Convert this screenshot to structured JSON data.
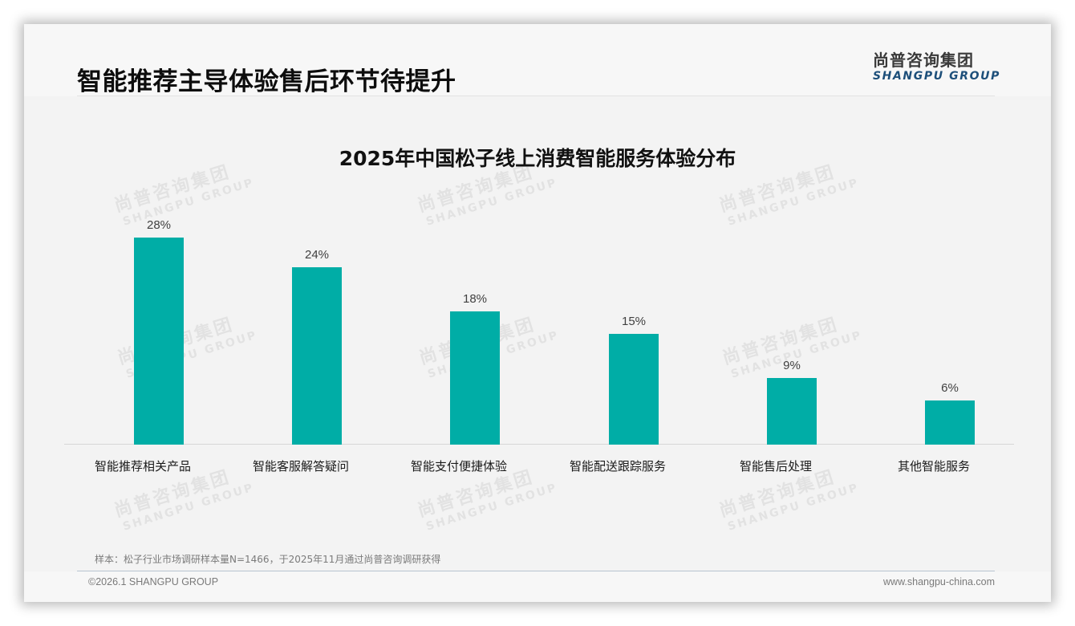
{
  "header": {
    "title": "智能推荐主导体验售后环节待提升",
    "logo_cn": "尚普咨询集团",
    "logo_en": "SHANGPU GROUP"
  },
  "watermark": {
    "cn": "尚普咨询集团",
    "en": "SHANGPU GROUP"
  },
  "chart_data": {
    "type": "bar",
    "title": "2025年中国松子线上消费智能服务体验分布",
    "categories": [
      "智能推荐相关产品",
      "智能客服解答疑问",
      "智能支付便捷体验",
      "智能配送跟踪服务",
      "智能售后处理",
      "其他智能服务"
    ],
    "values": [
      28,
      24,
      18,
      15,
      9,
      6
    ],
    "value_labels": [
      "28%",
      "24%",
      "18%",
      "15%",
      "9%",
      "6%"
    ],
    "unit": "%",
    "xlabel": "",
    "ylabel": "",
    "ylim": [
      0,
      30
    ],
    "grid": false,
    "legend": "none",
    "bar_color": "#00ada6"
  },
  "footnote": "样本：松子行业市场调研样本量N=1466，于2025年11月通过尚普咨询调研获得",
  "footer": {
    "copyright": "©2026.1 SHANGPU GROUP",
    "website": "www.shangpu-china.com"
  }
}
